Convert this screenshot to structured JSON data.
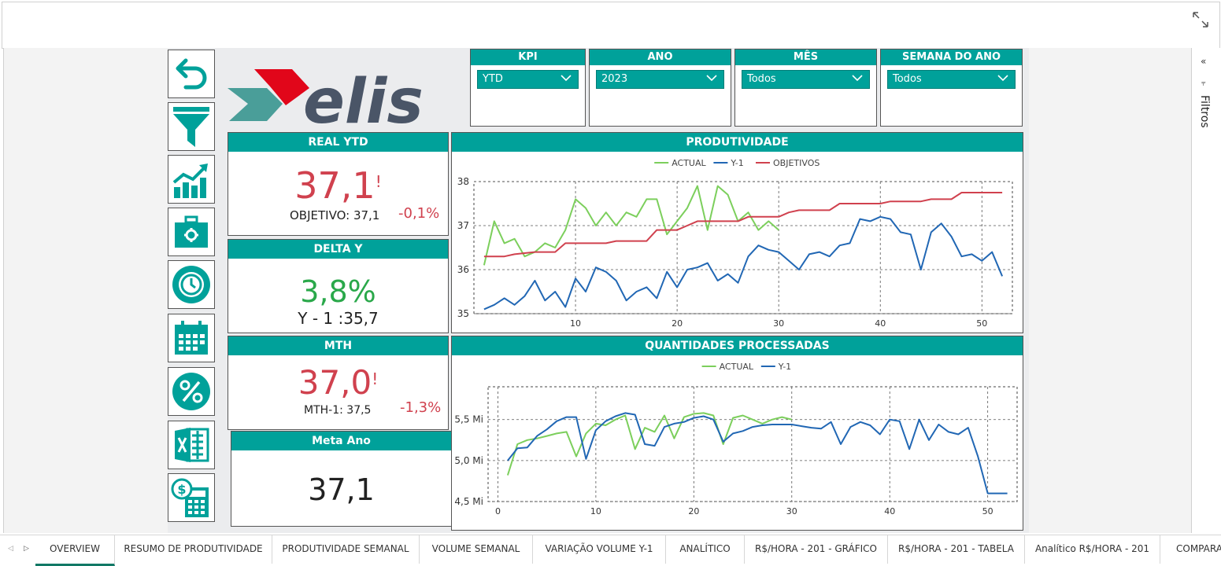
{
  "logo": {
    "text": "elis"
  },
  "slicers": [
    {
      "label": "KPI",
      "value": "YTD"
    },
    {
      "label": "ANO",
      "value": "2023"
    },
    {
      "label": "MÊS",
      "value": "Todos"
    },
    {
      "label": "SEMANA DO ANO",
      "value": "Todos"
    }
  ],
  "filters_pane": {
    "label": "Filtros"
  },
  "kpis": {
    "real_ytd": {
      "title": "REAL YTD",
      "value": "37,1",
      "flag": "!",
      "objective": "OBJETIVO: 37,1",
      "delta": "-0,1%"
    },
    "delta_y": {
      "title": "DELTA Y",
      "value": "3,8%",
      "sub": "Y - 1 :35,7"
    },
    "mth": {
      "title": "MTH",
      "value": "37,0",
      "flag": "!",
      "sub": "MTH-1: 37,5",
      "delta": "-1,3%"
    },
    "meta_ano": {
      "title": "Meta Ano",
      "value": "37,1"
    }
  },
  "tabs": [
    "OVERVIEW",
    "RESUMO DE PRODUTIVIDADE",
    "PRODUTIVIDADE SEMANAL",
    "VOLUME SEMANAL",
    "VARIAÇÃO VOLUME Y-1",
    "ANALÍTICO",
    "R$/HORA - 201 - GRÁFICO",
    "R$/HORA - 201 - TABELA",
    "Analítico R$/HORA - 201",
    "COMPARA"
  ],
  "nav_icons": [
    "back-arrow-icon",
    "filter-icon",
    "growth-chart-icon",
    "briefcase-gear-icon",
    "clock-gear-icon",
    "calendar-icon",
    "percent-icon",
    "excel-icon",
    "money-calculator-icon"
  ],
  "colors": {
    "teal": "#00a19a",
    "actual": "#7ccf5c",
    "y1": "#2167b4",
    "objective": "#d0414e",
    "red": "#d0414e",
    "green": "#2aa84a"
  },
  "chart_data": [
    {
      "type": "line",
      "title": "PRODUTIVIDADE",
      "ylim": [
        35,
        38
      ],
      "xlim": [
        0,
        53
      ],
      "x_ticks": [
        10,
        20,
        30,
        40,
        50
      ],
      "y_ticks": [
        35,
        36,
        37,
        38
      ],
      "legend": "top-center",
      "grid": true,
      "series": [
        {
          "name": "ACTUAL",
          "x": [
            1,
            2,
            3,
            4,
            5,
            6,
            7,
            8,
            9,
            10,
            11,
            12,
            13,
            14,
            15,
            16,
            17,
            18,
            19,
            20,
            21,
            22,
            23,
            24,
            25,
            26,
            27,
            28,
            29,
            30
          ],
          "values": [
            36.1,
            37.1,
            36.6,
            36.7,
            36.3,
            36.4,
            36.6,
            36.5,
            36.9,
            37.6,
            37.4,
            37.0,
            37.3,
            37.0,
            37.3,
            37.2,
            37.6,
            37.6,
            36.8,
            37.1,
            37.4,
            37.9,
            36.9,
            37.9,
            37.7,
            37.1,
            37.3,
            36.9,
            37.1,
            36.9
          ]
        },
        {
          "name": "Y-1",
          "x": [
            1,
            2,
            3,
            4,
            5,
            6,
            7,
            8,
            9,
            10,
            11,
            12,
            13,
            14,
            15,
            16,
            17,
            18,
            19,
            20,
            21,
            22,
            23,
            24,
            25,
            26,
            27,
            28,
            29,
            30,
            31,
            32,
            33,
            34,
            35,
            36,
            37,
            38,
            39,
            40,
            41,
            42,
            43,
            44,
            45,
            46,
            47,
            48,
            49,
            50,
            51,
            52
          ],
          "values": [
            35.1,
            35.2,
            35.35,
            35.2,
            35.4,
            35.75,
            35.3,
            35.5,
            35.15,
            35.8,
            35.5,
            36.05,
            35.95,
            35.75,
            35.3,
            35.5,
            35.6,
            35.35,
            35.95,
            35.6,
            36.0,
            36.05,
            36.15,
            35.75,
            35.9,
            35.7,
            36.3,
            36.55,
            36.45,
            36.4,
            36.2,
            36.0,
            36.35,
            36.4,
            36.3,
            36.55,
            36.6,
            37.15,
            37.1,
            37.2,
            37.15,
            36.85,
            36.8,
            36.0,
            36.85,
            37.05,
            36.75,
            36.3,
            36.35,
            36.2,
            36.4,
            35.85
          ]
        },
        {
          "name": "OBJETIVOS",
          "x": [
            1,
            3,
            4,
            6,
            8,
            9,
            13,
            14,
            16,
            17,
            18,
            20,
            21,
            22,
            23,
            24,
            25,
            26,
            27,
            28,
            29,
            30,
            31,
            32,
            33,
            34,
            35,
            36,
            37,
            38,
            39,
            40,
            41,
            42,
            43,
            44,
            45,
            46,
            47,
            48,
            49,
            50,
            51,
            52
          ],
          "values": [
            36.3,
            36.3,
            36.35,
            36.4,
            36.4,
            36.6,
            36.6,
            36.65,
            36.65,
            36.65,
            36.9,
            36.9,
            37.0,
            37.1,
            37.1,
            37.1,
            37.1,
            37.1,
            37.2,
            37.2,
            37.2,
            37.2,
            37.3,
            37.35,
            37.35,
            37.35,
            37.35,
            37.5,
            37.5,
            37.5,
            37.5,
            37.5,
            37.55,
            37.55,
            37.55,
            37.55,
            37.6,
            37.6,
            37.6,
            37.75,
            37.75,
            37.75,
            37.75,
            37.75
          ]
        }
      ]
    },
    {
      "type": "line",
      "title": "QUANTIDADES PROCESSADAS",
      "ylim": [
        4.5,
        5.9
      ],
      "xlim": [
        -1,
        53
      ],
      "x_ticks": [
        0,
        10,
        20,
        30,
        40,
        50
      ],
      "y_ticks": [
        4.5,
        5.0,
        5.5
      ],
      "y_tick_labels": [
        "4,5 Mi",
        "5,0 Mi",
        "5,5 Mi"
      ],
      "legend": "top-center",
      "grid": true,
      "series": [
        {
          "name": "ACTUAL",
          "x": [
            1,
            2,
            3,
            4,
            5,
            6,
            7,
            8,
            9,
            10,
            11,
            12,
            13,
            14,
            15,
            16,
            17,
            18,
            19,
            20,
            21,
            22,
            23,
            24,
            25,
            26,
            27,
            28,
            29,
            30
          ],
          "values": [
            4.82,
            5.2,
            5.25,
            5.27,
            5.3,
            5.33,
            5.35,
            5.05,
            5.33,
            5.45,
            5.43,
            5.5,
            5.55,
            5.14,
            5.4,
            5.35,
            5.55,
            5.27,
            5.53,
            5.57,
            5.58,
            5.55,
            5.2,
            5.52,
            5.55,
            5.5,
            5.45,
            5.5,
            5.53,
            5.5
          ]
        },
        {
          "name": "Y-1",
          "x": [
            1,
            2,
            3,
            4,
            5,
            6,
            7,
            8,
            9,
            10,
            11,
            12,
            13,
            14,
            15,
            16,
            17,
            18,
            19,
            20,
            21,
            22,
            23,
            24,
            25,
            26,
            27,
            28,
            29,
            30,
            31,
            32,
            33,
            34,
            35,
            36,
            37,
            38,
            39,
            40,
            41,
            42,
            43,
            44,
            45,
            46,
            47,
            48,
            49,
            50,
            51,
            52
          ],
          "values": [
            5.0,
            5.15,
            5.16,
            5.3,
            5.38,
            5.48,
            5.53,
            5.53,
            5.02,
            5.37,
            5.48,
            5.54,
            5.58,
            5.56,
            5.2,
            5.18,
            5.41,
            5.45,
            5.47,
            5.52,
            5.54,
            5.5,
            5.23,
            5.33,
            5.36,
            5.41,
            5.43,
            5.44,
            5.44,
            5.44,
            5.42,
            5.4,
            5.39,
            5.47,
            5.2,
            5.41,
            5.47,
            5.43,
            5.32,
            5.5,
            5.48,
            5.14,
            5.5,
            5.25,
            5.44,
            5.35,
            5.32,
            5.4,
            5.05,
            4.6,
            4.6,
            4.6
          ]
        }
      ]
    }
  ]
}
